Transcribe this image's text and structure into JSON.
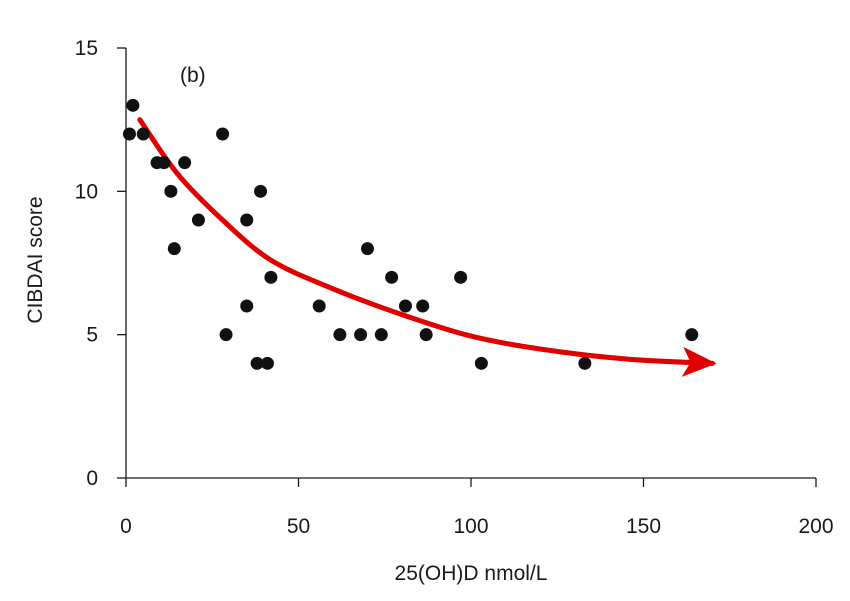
{
  "chart_data": {
    "type": "scatter",
    "title": "",
    "panel_label": "(b)",
    "xlabel": "25(OH)D nmol/L",
    "ylabel": "CIBDAI score",
    "xlim": [
      0,
      200
    ],
    "ylim": [
      0,
      15
    ],
    "x_ticks": [
      0,
      50,
      100,
      150,
      200
    ],
    "y_ticks": [
      0,
      5,
      10,
      15
    ],
    "grid": false,
    "legend": "none",
    "series": [
      {
        "x": [
          1,
          2,
          5,
          9,
          11,
          13,
          14,
          17,
          21,
          28,
          29,
          35,
          35,
          38,
          39,
          41,
          42,
          56,
          62,
          68,
          70,
          74,
          77,
          81,
          86,
          87,
          97,
          103,
          133,
          164
        ],
        "y": [
          12,
          13,
          12,
          11,
          11,
          10,
          8,
          11,
          9,
          12,
          5,
          9,
          6,
          4,
          10,
          4,
          7,
          6,
          5,
          5,
          8,
          5,
          7,
          6,
          6,
          5,
          7,
          4,
          4,
          5
        ],
        "color": "#111111"
      }
    ],
    "annotation": {
      "type": "trend-arrow",
      "color": "#e00000",
      "path_x": [
        4,
        15,
        28,
        42,
        60,
        80,
        100,
        120,
        145,
        170
      ],
      "path_y": [
        12.5,
        10.6,
        9.0,
        7.6,
        6.6,
        5.7,
        4.95,
        4.5,
        4.15,
        4.0
      ]
    }
  }
}
